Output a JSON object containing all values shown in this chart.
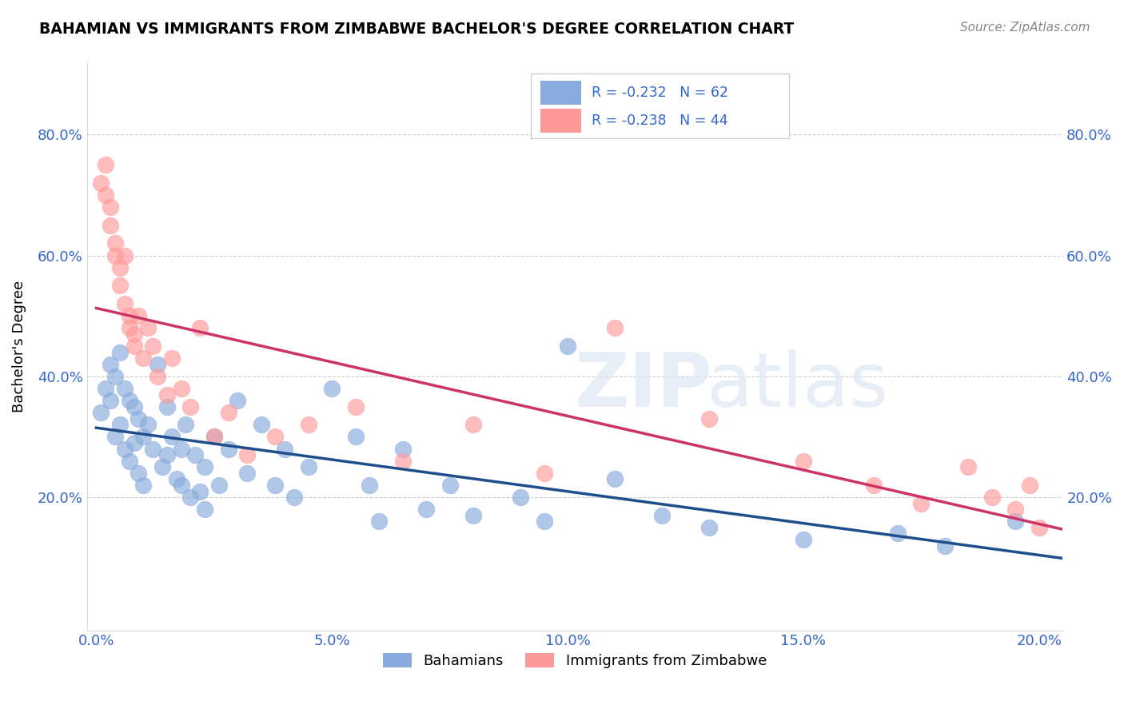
{
  "title": "BAHAMIAN VS IMMIGRANTS FROM ZIMBABWE BACHELOR'S DEGREE CORRELATION CHART",
  "source": "Source: ZipAtlas.com",
  "ylabel": "Bachelor's Degree",
  "y_tick_labels": [
    "80.0%",
    "60.0%",
    "40.0%",
    "20.0%"
  ],
  "y_tick_positions": [
    0.8,
    0.6,
    0.4,
    0.2
  ],
  "x_tick_positions": [
    0.0,
    0.05,
    0.1,
    0.15,
    0.2
  ],
  "x_tick_labels": [
    "0.0%",
    "5.0%",
    "10.0%",
    "15.0%",
    "20.0%"
  ],
  "xlim": [
    -0.002,
    0.205
  ],
  "ylim": [
    -0.02,
    0.92
  ],
  "legend_r1": "R = -0.232",
  "legend_n1": "N = 62",
  "legend_r2": "R = -0.238",
  "legend_n2": "N = 44",
  "legend_label1": "Bahamians",
  "legend_label2": "Immigrants from Zimbabwe",
  "blue_color": "#88AADD",
  "pink_color": "#FF9999",
  "blue_line_color": "#1F4E8C",
  "pink_line_color": "#CC3366",
  "tick_label_color": "#3366CC",
  "blue_x": [
    0.001,
    0.002,
    0.003,
    0.003,
    0.004,
    0.004,
    0.005,
    0.005,
    0.006,
    0.006,
    0.007,
    0.007,
    0.008,
    0.008,
    0.009,
    0.009,
    0.01,
    0.01,
    0.011,
    0.012,
    0.013,
    0.014,
    0.015,
    0.015,
    0.016,
    0.017,
    0.018,
    0.018,
    0.019,
    0.02,
    0.021,
    0.022,
    0.023,
    0.023,
    0.025,
    0.026,
    0.028,
    0.03,
    0.032,
    0.035,
    0.038,
    0.04,
    0.042,
    0.045,
    0.05,
    0.055,
    0.058,
    0.06,
    0.065,
    0.07,
    0.075,
    0.08,
    0.09,
    0.095,
    0.1,
    0.11,
    0.12,
    0.13,
    0.15,
    0.17,
    0.18,
    0.195
  ],
  "blue_y": [
    0.34,
    0.38,
    0.42,
    0.36,
    0.4,
    0.3,
    0.44,
    0.32,
    0.38,
    0.28,
    0.36,
    0.26,
    0.35,
    0.29,
    0.33,
    0.24,
    0.3,
    0.22,
    0.32,
    0.28,
    0.42,
    0.25,
    0.35,
    0.27,
    0.3,
    0.23,
    0.28,
    0.22,
    0.32,
    0.2,
    0.27,
    0.21,
    0.25,
    0.18,
    0.3,
    0.22,
    0.28,
    0.36,
    0.24,
    0.32,
    0.22,
    0.28,
    0.2,
    0.25,
    0.38,
    0.3,
    0.22,
    0.16,
    0.28,
    0.18,
    0.22,
    0.17,
    0.2,
    0.16,
    0.45,
    0.23,
    0.17,
    0.15,
    0.13,
    0.14,
    0.12,
    0.16
  ],
  "pink_x": [
    0.001,
    0.002,
    0.002,
    0.003,
    0.003,
    0.004,
    0.004,
    0.005,
    0.005,
    0.006,
    0.006,
    0.007,
    0.007,
    0.008,
    0.008,
    0.009,
    0.01,
    0.011,
    0.012,
    0.013,
    0.015,
    0.016,
    0.018,
    0.02,
    0.022,
    0.025,
    0.028,
    0.032,
    0.038,
    0.045,
    0.055,
    0.065,
    0.08,
    0.095,
    0.11,
    0.13,
    0.15,
    0.165,
    0.175,
    0.185,
    0.19,
    0.195,
    0.198,
    0.2
  ],
  "pink_y": [
    0.72,
    0.75,
    0.7,
    0.68,
    0.65,
    0.62,
    0.6,
    0.58,
    0.55,
    0.52,
    0.6,
    0.5,
    0.48,
    0.45,
    0.47,
    0.5,
    0.43,
    0.48,
    0.45,
    0.4,
    0.37,
    0.43,
    0.38,
    0.35,
    0.48,
    0.3,
    0.34,
    0.27,
    0.3,
    0.32,
    0.35,
    0.26,
    0.32,
    0.24,
    0.48,
    0.33,
    0.26,
    0.22,
    0.19,
    0.25,
    0.2,
    0.18,
    0.22,
    0.15
  ]
}
